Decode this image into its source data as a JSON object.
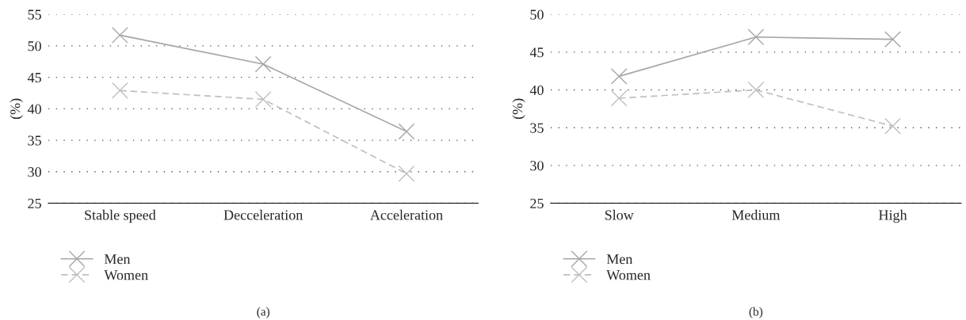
{
  "chart_data": [
    {
      "type": "line",
      "title": "(a)",
      "ylabel": "(%)",
      "categories": [
        "Stable speed",
        "Decceleration",
        "Acceleration"
      ],
      "series": [
        {
          "name": "Men",
          "color": "#a6a6a6",
          "line_style": "solid",
          "values": [
            51.7,
            47.1,
            36.4
          ]
        },
        {
          "name": "Women",
          "color": "#bfbfbf",
          "line_style": "dashed",
          "values": [
            42.9,
            41.5,
            29.7
          ]
        }
      ],
      "ylim": [
        25,
        55
      ],
      "yticks": [
        25,
        30,
        35,
        40,
        45,
        50,
        55
      ],
      "grid": "y",
      "marker": "cross",
      "legend": "bottom left"
    },
    {
      "type": "line",
      "title": "(b)",
      "ylabel": "(%)",
      "categories": [
        "Slow",
        "Medium",
        "High"
      ],
      "series": [
        {
          "name": "Men",
          "color": "#a6a6a6",
          "line_style": "solid",
          "values": [
            41.8,
            47.0,
            46.7
          ]
        },
        {
          "name": "Women",
          "color": "#bfbfbf",
          "line_style": "dashed",
          "values": [
            38.9,
            40.0,
            35.2
          ]
        }
      ],
      "ylim": [
        25,
        50
      ],
      "yticks": [
        25,
        30,
        35,
        40,
        45,
        50
      ],
      "grid": "y",
      "marker": "cross",
      "legend": "bottom left"
    }
  ]
}
